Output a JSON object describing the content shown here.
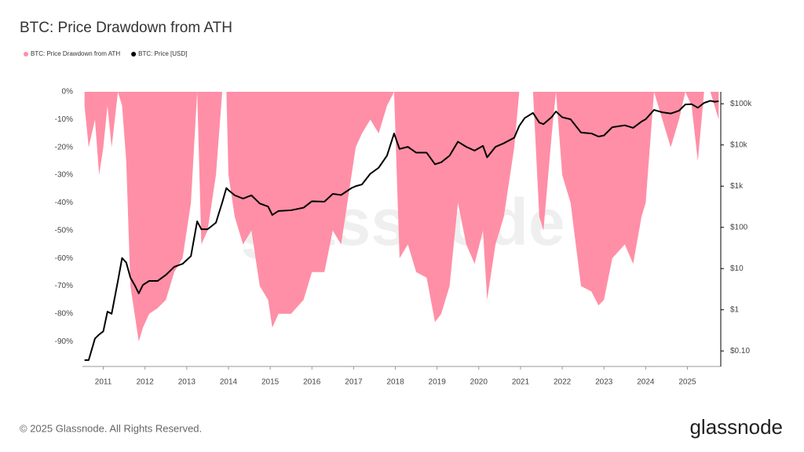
{
  "chart_data": {
    "type": "combo",
    "title": "BTC: Price Drawdown from ATH",
    "watermark": "glassnode",
    "legend": "top-left",
    "x": [
      2010.55,
      2010.65,
      2010.8,
      2010.9,
      2011.0,
      2011.1,
      2011.2,
      2011.35,
      2011.45,
      2011.55,
      2011.65,
      2011.75,
      2011.85,
      2011.95,
      2012.1,
      2012.3,
      2012.5,
      2012.7,
      2012.9,
      2013.1,
      2013.25,
      2013.35,
      2013.5,
      2013.7,
      2013.85,
      2013.95,
      2014.0,
      2014.15,
      2014.35,
      2014.55,
      2014.75,
      2014.95,
      2015.05,
      2015.2,
      2015.5,
      2015.8,
      2016.0,
      2016.3,
      2016.5,
      2016.7,
      2016.95,
      2017.05,
      2017.2,
      2017.4,
      2017.6,
      2017.8,
      2017.97,
      2018.1,
      2018.3,
      2018.5,
      2018.75,
      2018.95,
      2019.1,
      2019.3,
      2019.5,
      2019.7,
      2019.9,
      2020.1,
      2020.2,
      2020.4,
      2020.6,
      2020.85,
      2020.97,
      2021.1,
      2021.3,
      2021.45,
      2021.55,
      2021.75,
      2021.85,
      2022.0,
      2022.2,
      2022.45,
      2022.7,
      2022.87,
      2023.0,
      2023.2,
      2023.5,
      2023.7,
      2023.9,
      2024.0,
      2024.2,
      2024.4,
      2024.6,
      2024.8,
      2024.95,
      2025.1,
      2025.25,
      2025.4,
      2025.55,
      2025.65,
      2025.75
    ],
    "series": [
      {
        "name": "BTC: Price Drawdown from ATH",
        "type": "area",
        "color": "#ff8fa6",
        "values": [
          -5,
          -20,
          -10,
          -30,
          -20,
          -5,
          -20,
          0,
          -5,
          -25,
          -70,
          -80,
          -90,
          -85,
          -80,
          -78,
          -75,
          -65,
          -60,
          -40,
          0,
          -55,
          -50,
          -30,
          0,
          0,
          -30,
          -45,
          -55,
          -50,
          -70,
          -75,
          -85,
          -80,
          -80,
          -75,
          -65,
          -65,
          -50,
          -55,
          -30,
          -20,
          -15,
          -10,
          -15,
          -5,
          0,
          -60,
          -55,
          -65,
          -67,
          -83,
          -80,
          -70,
          -40,
          -55,
          -62,
          -50,
          -75,
          -55,
          -45,
          -20,
          0,
          0,
          0,
          -45,
          -50,
          -15,
          0,
          -30,
          -40,
          -70,
          -72,
          -77,
          -75,
          -60,
          -55,
          -62,
          -45,
          -40,
          0,
          -10,
          -20,
          -10,
          0,
          -5,
          -25,
          0,
          0,
          -5,
          -10
        ]
      },
      {
        "name": "BTC: Price [USD]",
        "type": "line",
        "axis": "y2",
        "color": "#000000",
        "values": [
          0.06,
          0.06,
          0.2,
          0.25,
          0.3,
          0.9,
          0.8,
          5,
          18,
          14,
          6,
          4,
          2.5,
          4,
          5,
          5,
          7,
          11,
          13,
          20,
          140,
          90,
          90,
          130,
          400,
          900,
          800,
          600,
          500,
          600,
          380,
          320,
          200,
          250,
          260,
          300,
          430,
          420,
          650,
          610,
          900,
          1000,
          1100,
          2000,
          2800,
          5500,
          19000,
          8000,
          9000,
          6500,
          6500,
          3400,
          3800,
          5500,
          12000,
          9000,
          7300,
          9500,
          5000,
          9000,
          11000,
          15000,
          29000,
          45000,
          60000,
          35000,
          32000,
          48000,
          65000,
          47000,
          42000,
          20000,
          19000,
          16000,
          17000,
          27000,
          30000,
          26000,
          37000,
          42000,
          71000,
          62000,
          58000,
          68000,
          96000,
          98000,
          80000,
          105000,
          118000,
          112000,
          115000
        ]
      }
    ],
    "xlim": [
      2010.5,
      2025.8
    ],
    "xticks": [
      2011,
      2012,
      2013,
      2014,
      2015,
      2016,
      2017,
      2018,
      2019,
      2020,
      2021,
      2022,
      2023,
      2024,
      2025
    ],
    "ylim": [
      -99,
      0
    ],
    "yticks": [
      {
        "value": 0,
        "label": "0%"
      },
      {
        "value": -10,
        "label": "-10%"
      },
      {
        "value": -20,
        "label": "-20%"
      },
      {
        "value": -30,
        "label": "-30%"
      },
      {
        "value": -40,
        "label": "-40%"
      },
      {
        "value": -50,
        "label": "-50%"
      },
      {
        "value": -60,
        "label": "-60%"
      },
      {
        "value": -70,
        "label": "-70%"
      },
      {
        "value": -80,
        "label": "-80%"
      },
      {
        "value": -90,
        "label": "-90%"
      }
    ],
    "y2lim": [
      0.042,
      195000
    ],
    "y2log": true,
    "y2ticks": [
      {
        "value": 0.1,
        "label": "$0.10"
      },
      {
        "value": 1,
        "label": "$1"
      },
      {
        "value": 10,
        "label": "$10"
      },
      {
        "value": 100,
        "label": "$100"
      },
      {
        "value": 1000,
        "label": "$1k"
      },
      {
        "value": 10000,
        "label": "$10k"
      },
      {
        "value": 100000,
        "label": "$100k"
      }
    ]
  },
  "footer": {
    "copyright": "© 2025 Glassnode. All Rights Reserved.",
    "logo": "glassnode"
  }
}
